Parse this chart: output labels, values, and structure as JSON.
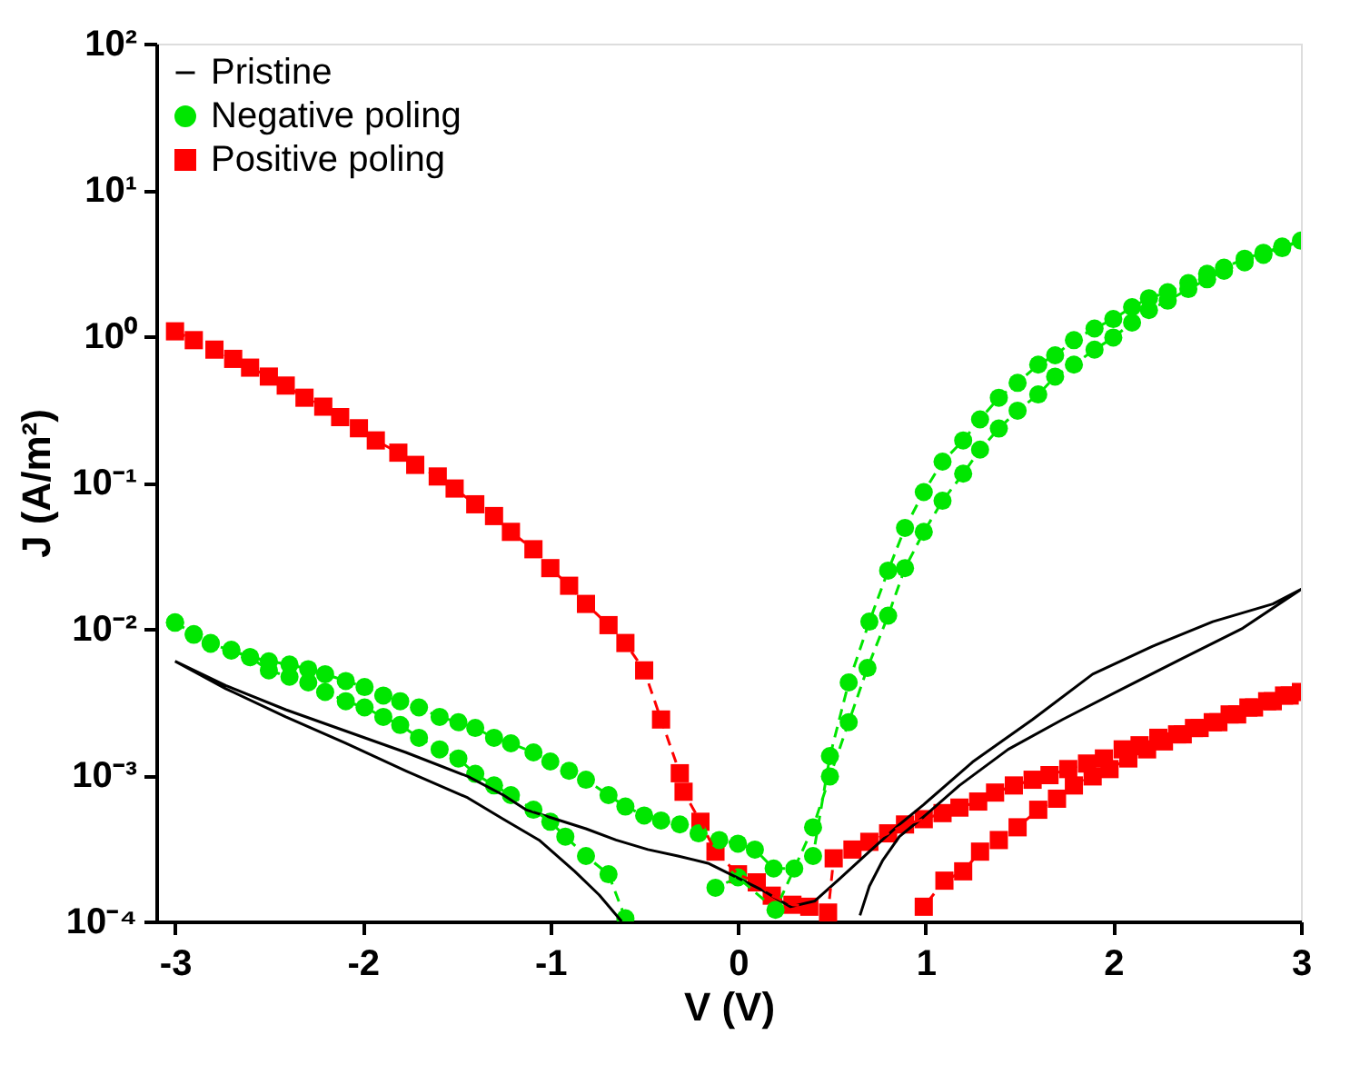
{
  "chart_data": {
    "type": "line",
    "xlabel": "V (V)",
    "ylabel": "J (A/m²)",
    "log": "y",
    "grid": false,
    "legend": "top left",
    "xlim": [
      -3.1,
      3.0
    ],
    "xticks": [
      -3,
      -2,
      -1,
      0,
      1,
      2,
      3
    ],
    "ylim": [
      0.0001,
      100
    ],
    "yticks": [
      {
        "value": 0.0001,
        "label": "10⁻⁴"
      },
      {
        "value": 0.001,
        "label": "10⁻³"
      },
      {
        "value": 0.01,
        "label": "10⁻²"
      },
      {
        "value": 0.1,
        "label": "10⁻¹"
      },
      {
        "value": 1,
        "label": "10⁰"
      },
      {
        "value": 10,
        "label": "10¹"
      },
      {
        "value": 100,
        "label": "10²"
      }
    ],
    "series": [
      {
        "name": "Pristine",
        "color": "#000000",
        "marker": "none",
        "line_style": "solid",
        "x": [
          -3.0,
          -2.73,
          -2.41,
          -2.09,
          -1.77,
          -1.44,
          -1.25,
          -1.13,
          -0.97,
          -0.81,
          -0.65,
          -0.48,
          -0.32,
          -0.16,
          -0.04,
          0.12,
          0.28,
          0.41,
          0.54,
          0.7,
          0.86,
          0.99,
          1.25,
          1.57,
          1.89,
          2.21,
          2.53,
          2.85,
          3.0,
          2.69,
          2.37,
          2.05,
          1.73,
          1.44,
          1.18,
          0.99,
          0.86,
          0.77,
          0.7,
          0.65,
          null,
          -0.62,
          -0.74,
          -0.87,
          -1.06,
          -1.25,
          -1.44,
          -1.77,
          -2.09,
          -2.41,
          -2.73,
          -3.0
        ],
        "values": [
          0.006,
          0.0041,
          0.0028,
          0.002,
          0.00143,
          0.00098,
          0.00073,
          0.00058,
          0.0005,
          0.00043,
          0.00036,
          0.00031,
          0.00028,
          0.00025,
          0.00021,
          0.000166,
          0.000126,
          0.000138,
          0.000195,
          0.0003,
          0.00046,
          0.00063,
          0.00123,
          0.0024,
          0.0049,
          0.0076,
          0.0112,
          0.0148,
          0.0186,
          0.0101,
          0.0063,
          0.0039,
          0.0024,
          0.0015,
          0.00085,
          0.00052,
          0.00038,
          0.00026,
          0.000174,
          0.00011,
          null,
          0.0001,
          0.000152,
          0.00022,
          0.00036,
          0.0005,
          0.0007,
          0.00107,
          0.00165,
          0.0025,
          0.0039,
          0.006
        ]
      },
      {
        "name": "Negative poling",
        "color": "#00e600",
        "marker": "circle",
        "line_style": "dashed",
        "x": [
          -3.0,
          -2.9,
          -2.81,
          -2.7,
          -2.6,
          -2.5,
          -2.39,
          -2.29,
          -2.2,
          -2.09,
          -1.99,
          -1.89,
          -1.8,
          -1.7,
          -1.59,
          -1.49,
          -1.4,
          -1.3,
          -1.21,
          -1.09,
          -1.0,
          -0.9,
          -0.81,
          -0.69,
          -0.6,
          -0.5,
          -0.41,
          -0.31,
          -0.21,
          -0.1,
          0.0,
          0.09,
          0.19,
          0.3,
          0.4,
          0.49,
          0.59,
          0.7,
          0.8,
          0.89,
          0.99,
          1.09,
          1.2,
          1.29,
          1.39,
          1.49,
          1.6,
          1.69,
          1.79,
          1.9,
          2.0,
          2.1,
          2.19,
          2.29,
          2.4,
          2.5,
          2.59,
          2.7,
          2.8,
          2.9,
          3.0,
          2.9,
          2.8,
          2.7,
          2.59,
          2.5,
          2.4,
          2.29,
          2.19,
          2.1,
          2.0,
          1.9,
          1.79,
          1.69,
          1.6,
          1.49,
          1.39,
          1.29,
          1.2,
          1.09,
          0.99,
          0.89,
          0.8,
          0.69,
          0.59,
          0.49,
          0.4,
          0.2,
          0.0,
          -0.12,
          null,
          -0.6,
          -0.69,
          -0.81,
          -0.92,
          -1.0,
          -1.09,
          -1.21,
          -1.3,
          -1.4,
          -1.49,
          -1.59,
          -1.7,
          -1.8,
          -1.89,
          -1.99,
          -2.09,
          -2.2,
          -2.29,
          -2.39,
          -2.5,
          -2.6,
          -2.7,
          -2.81,
          -2.9,
          -3.0
        ],
        "values": [
          0.0111,
          0.0092,
          0.008,
          0.0072,
          0.0064,
          0.006,
          0.0057,
          0.0053,
          0.0049,
          0.0044,
          0.004,
          0.0035,
          0.0032,
          0.0029,
          0.0025,
          0.0023,
          0.0021,
          0.0018,
          0.00165,
          0.00143,
          0.00124,
          0.00107,
          0.00093,
          0.00073,
          0.00061,
          0.00053,
          0.00049,
          0.00046,
          0.0004,
          0.00036,
          0.00034,
          0.00031,
          0.00023,
          0.00023,
          0.00028,
          0.00135,
          0.0043,
          0.0112,
          0.025,
          0.049,
          0.086,
          0.139,
          0.194,
          0.27,
          0.38,
          0.48,
          0.64,
          0.74,
          0.94,
          1.13,
          1.31,
          1.58,
          1.82,
          2.0,
          2.31,
          2.67,
          2.94,
          3.39,
          3.72,
          4.1,
          4.5,
          4.0,
          3.6,
          3.2,
          2.8,
          2.45,
          2.1,
          1.75,
          1.51,
          1.24,
          0.98,
          0.81,
          0.64,
          0.53,
          0.4,
          0.31,
          0.234,
          0.168,
          0.115,
          0.075,
          0.046,
          0.026,
          0.0123,
          0.0054,
          0.0023,
          0.00098,
          0.00044,
          0.00012,
          0.0002,
          0.00017,
          null,
          0.000105,
          0.00021,
          0.00028,
          0.00038,
          0.00048,
          0.00058,
          0.00073,
          0.00085,
          0.00102,
          0.0013,
          0.0015,
          0.0018,
          0.0022,
          0.0025,
          0.0029,
          0.0032,
          0.0037,
          0.0043,
          0.0047,
          0.0052,
          0.0064,
          0.0071,
          0.0079,
          0.0091,
          0.011
        ]
      },
      {
        "name": "Positive poling",
        "color": "#ff0000",
        "marker": "square",
        "line_style": "dashed",
        "x": [
          -3.0,
          -2.9,
          -2.79,
          -2.69,
          -2.6,
          -2.5,
          -2.41,
          -2.31,
          -2.21,
          -2.12,
          -2.02,
          -1.93,
          -1.81,
          -1.72,
          -1.6,
          -1.51,
          -1.4,
          -1.3,
          -1.21,
          -1.09,
          -1.0,
          -0.9,
          -0.81,
          -0.69,
          -0.6,
          -0.5,
          -0.41,
          -0.31,
          -0.29,
          -0.2,
          -0.12,
          0.0,
          0.1,
          0.18,
          0.29,
          0.38,
          0.48,
          0.51,
          0.61,
          0.7,
          0.8,
          0.89,
          0.99,
          1.09,
          1.18,
          1.28,
          1.37,
          1.47,
          1.57,
          1.66,
          1.76,
          1.86,
          1.95,
          2.05,
          2.14,
          2.24,
          2.34,
          2.43,
          2.53,
          2.62,
          2.72,
          2.82,
          2.91,
          3.0,
          2.94,
          2.85,
          2.75,
          2.66,
          2.56,
          2.46,
          2.37,
          2.27,
          2.18,
          2.08,
          1.98,
          1.89,
          1.79,
          1.7,
          1.6,
          1.49,
          1.39,
          1.29,
          1.2,
          1.1,
          0.99
        ],
        "values": [
          1.08,
          0.94,
          0.81,
          0.7,
          0.61,
          0.53,
          0.46,
          0.38,
          0.33,
          0.28,
          0.235,
          0.194,
          0.16,
          0.132,
          0.11,
          0.091,
          0.071,
          0.059,
          0.046,
          0.035,
          0.026,
          0.0197,
          0.0148,
          0.0106,
          0.008,
          0.0052,
          0.0024,
          0.00103,
          0.00077,
          0.00048,
          0.0003,
          0.00021,
          0.000185,
          0.00015,
          0.00013,
          0.000126,
          0.000115,
          0.00027,
          0.00031,
          0.00035,
          0.0004,
          0.00046,
          0.0005,
          0.00055,
          0.0006,
          0.00066,
          0.00076,
          0.00085,
          0.00093,
          0.001,
          0.0011,
          0.0012,
          0.0013,
          0.0015,
          0.0016,
          0.0018,
          0.0019,
          0.0021,
          0.0023,
          0.0026,
          0.0029,
          0.0032,
          0.0035,
          0.0037,
          0.0035,
          0.0032,
          0.0029,
          0.0026,
          0.0023,
          0.0021,
          0.0019,
          0.0017,
          0.0015,
          0.0013,
          0.0011,
          0.00098,
          0.00085,
          0.00069,
          0.00058,
          0.00044,
          0.00036,
          0.0003,
          0.00022,
          0.00019,
          0.000126
        ]
      }
    ]
  }
}
